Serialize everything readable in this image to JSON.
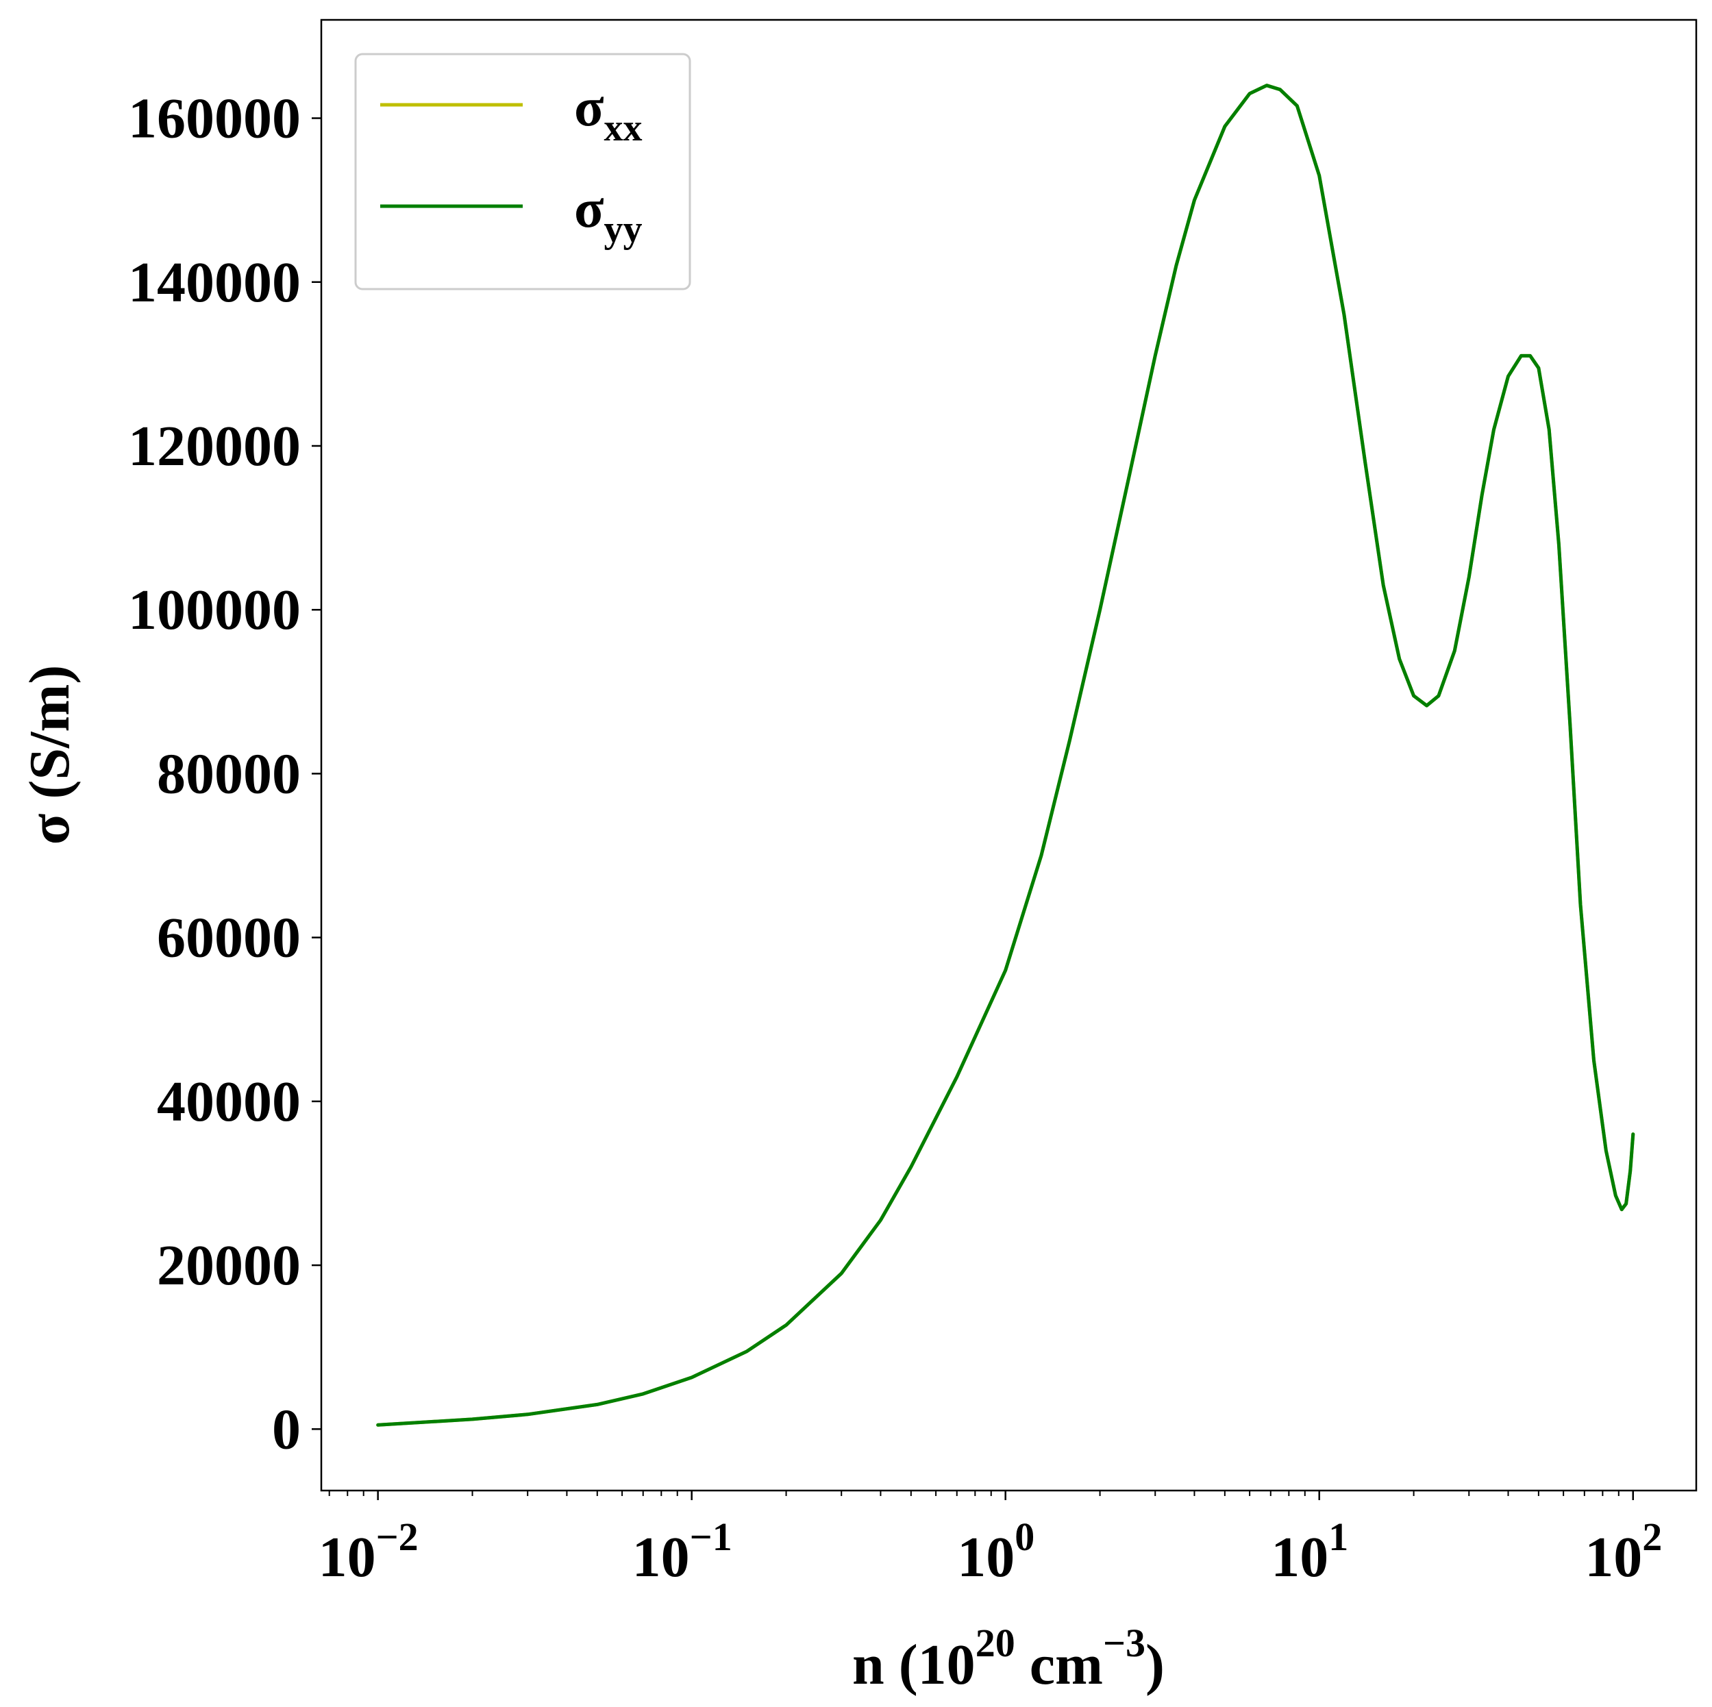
{
  "chart_data": {
    "type": "line",
    "xscale": "log",
    "xlim": [
      0.0066,
      159
    ],
    "ylim": [
      -7500,
      172000
    ],
    "xticks": [
      {
        "value": 0.01,
        "base": "10",
        "exp": "−2"
      },
      {
        "value": 0.1,
        "base": "10",
        "exp": "−1"
      },
      {
        "value": 1,
        "base": "10",
        "exp": "0"
      },
      {
        "value": 10,
        "base": "10",
        "exp": "1"
      },
      {
        "value": 100,
        "base": "10",
        "exp": "2"
      }
    ],
    "yticks": [
      {
        "value": 0,
        "label": "0"
      },
      {
        "value": 20000,
        "label": "20000"
      },
      {
        "value": 40000,
        "label": "40000"
      },
      {
        "value": 60000,
        "label": "60000"
      },
      {
        "value": 80000,
        "label": "80000"
      },
      {
        "value": 100000,
        "label": "100000"
      },
      {
        "value": 120000,
        "label": "120000"
      },
      {
        "value": 140000,
        "label": "140000"
      },
      {
        "value": 160000,
        "label": "160000"
      }
    ],
    "xlabel": {
      "pre": "n (10",
      "sup1": "20",
      "mid": " cm",
      "sup2": "−3",
      "post": ")"
    },
    "ylabel": "σ (S/m)",
    "legend_position": "upper-left",
    "grid": false,
    "series": [
      {
        "name": "σ",
        "name_sub": "xx",
        "color": "#bfbf00",
        "x": [
          0.01,
          0.02,
          0.03,
          0.05,
          0.07,
          0.1,
          0.15,
          0.2,
          0.3,
          0.4,
          0.5,
          0.7,
          1.0,
          1.3,
          1.6,
          2.0,
          2.5,
          3.0,
          3.5,
          4.0,
          5.0,
          6.0,
          6.8,
          7.5,
          8.5,
          10.0,
          12.0,
          14.0,
          16.0,
          18.0,
          20.0,
          22.0,
          24.0,
          27.0,
          30.0,
          33.0,
          36.0,
          40.0,
          44.0,
          47.0,
          50.0,
          54.0,
          58.0,
          63.0,
          68.0,
          75.0,
          82.0,
          88.0,
          92.0,
          95.0,
          98.0,
          100.0
        ],
        "y": [
          500,
          1200,
          1800,
          3000,
          4300,
          6300,
          9500,
          12700,
          19000,
          25500,
          32000,
          43000,
          56000,
          70000,
          84000,
          100000,
          117000,
          131000,
          142000,
          150000,
          159000,
          163000,
          164000,
          163500,
          161500,
          153000,
          136000,
          118000,
          103000,
          94000,
          89500,
          88300,
          89500,
          95000,
          104000,
          114000,
          122000,
          128500,
          131000,
          131000,
          129500,
          122000,
          108000,
          86000,
          64000,
          45000,
          34000,
          28500,
          26800,
          27500,
          31500,
          36000
        ]
      },
      {
        "name": "σ",
        "name_sub": "yy",
        "color": "#007f00",
        "x": [
          0.01,
          0.02,
          0.03,
          0.05,
          0.07,
          0.1,
          0.15,
          0.2,
          0.3,
          0.4,
          0.5,
          0.7,
          1.0,
          1.3,
          1.6,
          2.0,
          2.5,
          3.0,
          3.5,
          4.0,
          5.0,
          6.0,
          6.8,
          7.5,
          8.5,
          10.0,
          12.0,
          14.0,
          16.0,
          18.0,
          20.0,
          22.0,
          24.0,
          27.0,
          30.0,
          33.0,
          36.0,
          40.0,
          44.0,
          47.0,
          50.0,
          54.0,
          58.0,
          63.0,
          68.0,
          75.0,
          82.0,
          88.0,
          92.0,
          95.0,
          98.0,
          100.0
        ],
        "y": [
          500,
          1200,
          1800,
          3000,
          4300,
          6300,
          9500,
          12700,
          19000,
          25500,
          32000,
          43000,
          56000,
          70000,
          84000,
          100000,
          117000,
          131000,
          142000,
          150000,
          159000,
          163000,
          164000,
          163500,
          161500,
          153000,
          136000,
          118000,
          103000,
          94000,
          89500,
          88300,
          89500,
          95000,
          104000,
          114000,
          122000,
          128500,
          131000,
          131000,
          129500,
          122000,
          108000,
          86000,
          64000,
          45000,
          34000,
          28500,
          26800,
          27500,
          31500,
          36000
        ]
      }
    ]
  }
}
